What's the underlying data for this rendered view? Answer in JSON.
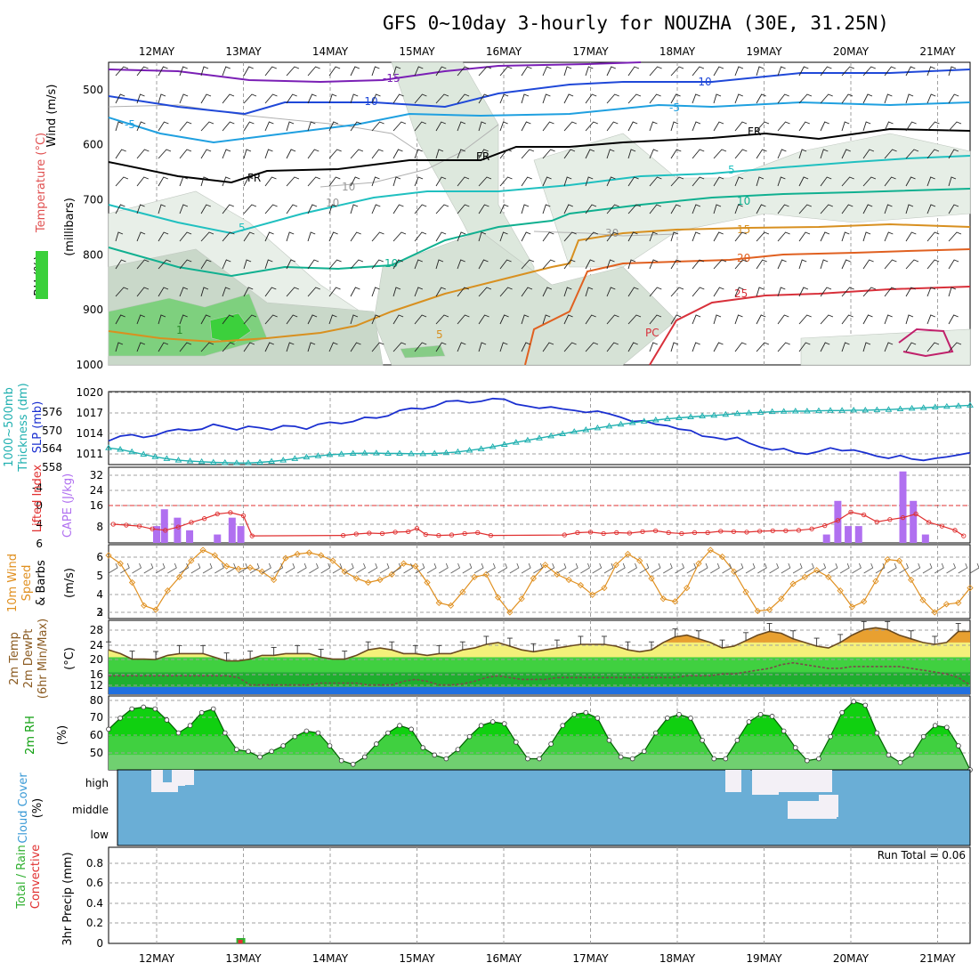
{
  "title": "GFS 0~10day 3-hourly for NOUZHA (30E, 31.25N)",
  "dates": [
    "12MAY",
    "13MAY",
    "14MAY",
    "15MAY",
    "16MAY",
    "17MAY",
    "18MAY",
    "19MAY",
    "20MAY",
    "21MAY"
  ],
  "colors": {
    "grid": "#a0a0a0",
    "slp": "#1a2fd0",
    "thick": "#20b0b0",
    "lifted": "#e03030",
    "cape": "#b070f0",
    "wind10": "#e09020",
    "temp_fill_warm": "#f4f07a",
    "temp_fill_hot": "#e8a030",
    "rh_fill": "#10d010",
    "cloud": "#6aaed6",
    "rain": "#30b030",
    "conv": "#e03030"
  },
  "chart_data": [
    {
      "type": "heatmap",
      "panel": "upper-air",
      "ylabel": "(millibars)",
      "side_labels": [
        "Wind (m/s)",
        "Temperature (°C)",
        "RH (%)"
      ],
      "yticks": [
        500,
        600,
        700,
        800,
        900,
        1000
      ],
      "ylim": [
        1000,
        450
      ],
      "isotherm_labels": [
        "-15",
        "-10",
        "-10",
        "-5",
        "-5",
        "FR",
        "FR",
        "FR",
        "5",
        "5",
        "10",
        "10",
        "15",
        "20",
        "25",
        "30",
        "10",
        "10",
        "1",
        "5",
        "PC"
      ]
    },
    {
      "type": "line",
      "panel": "slp-thickness",
      "side_labels": [
        "1000~500mb",
        "Thickness (dm)",
        "SLP (mb)"
      ],
      "slp_ticks": [
        "1020",
        "1017",
        "1014",
        "1011"
      ],
      "thick_ticks": [
        "576",
        "570",
        "564",
        "558"
      ],
      "ylim": [
        1009.5,
        1020
      ],
      "slp": [
        1012.9,
        1013.6,
        1013.8,
        1013.4,
        1013.7,
        1014.3,
        1014.6,
        1014.4,
        1014.6,
        1015.3,
        1014.9,
        1014.5,
        1015.0,
        1014.8,
        1014.5,
        1015.1,
        1015.0,
        1014.6,
        1015.3,
        1015.6,
        1015.4,
        1015.7,
        1016.3,
        1016.2,
        1016.5,
        1017.3,
        1017.6,
        1017.5,
        1017.9,
        1018.6,
        1018.7,
        1018.4,
        1018.6,
        1019.0,
        1018.9,
        1018.2,
        1017.9,
        1017.6,
        1017.8,
        1017.5,
        1017.3,
        1017.0,
        1017.2,
        1016.8,
        1016.3,
        1015.7,
        1015.8,
        1015.3,
        1015.1,
        1014.6,
        1014.4,
        1013.6,
        1013.4,
        1013.1,
        1013.4,
        1012.6,
        1012.0,
        1011.6,
        1011.8,
        1011.2,
        1011.0,
        1011.4,
        1011.9,
        1011.5,
        1011.6,
        1011.2,
        1010.7,
        1010.4,
        1010.8,
        1010.3,
        1010.1,
        1010.4,
        1010.6,
        1010.9,
        1011.2
      ],
      "thickness": [
        564.3,
        563.8,
        563.0,
        562.2,
        561.4,
        560.8,
        560.3,
        560.0,
        559.8,
        559.6,
        559.5,
        559.4,
        559.4,
        559.6,
        559.9,
        560.3,
        560.8,
        561.3,
        561.7,
        562.1,
        562.3,
        562.5,
        562.6,
        562.6,
        562.5,
        562.5,
        562.4,
        562.4,
        562.5,
        562.7,
        563.0,
        563.5,
        564.0,
        564.7,
        565.4,
        566.1,
        566.8,
        567.5,
        568.2,
        568.9,
        569.6,
        570.2,
        570.8,
        571.4,
        572.0,
        572.5,
        573.0,
        573.4,
        573.8,
        574.1,
        574.4,
        574.7,
        574.9,
        575.2,
        575.5,
        575.7,
        575.9,
        576.1,
        576.2,
        576.3,
        576.3,
        576.4,
        576.5,
        576.5,
        576.6,
        576.6,
        576.7,
        576.8,
        577.0,
        577.2,
        577.4,
        577.6,
        577.8,
        578.0,
        578.2
      ]
    },
    {
      "type": "bar",
      "panel": "cape-li",
      "side_labels": [
        "CAPE (J/kg)",
        "Lifted Index"
      ],
      "cape_ticks": [
        "32",
        "24",
        "16",
        "8"
      ],
      "li_ticks": [
        "-4",
        "0",
        "4",
        "6"
      ],
      "cape_bars": [
        {
          "x": 0.0,
          "v": 8
        },
        {
          "x": 0.09,
          "v": 16
        },
        {
          "x": 0.24,
          "v": 12
        },
        {
          "x": 0.38,
          "v": 6
        },
        {
          "x": 0.7,
          "v": 4
        },
        {
          "x": 0.87,
          "v": 12
        },
        {
          "x": 0.97,
          "v": 8
        },
        {
          "x": 7.72,
          "v": 4
        },
        {
          "x": 7.85,
          "v": 20
        },
        {
          "x": 7.97,
          "v": 8
        },
        {
          "x": 8.09,
          "v": 8
        },
        {
          "x": 8.6,
          "v": 34
        },
        {
          "x": 8.72,
          "v": 20
        },
        {
          "x": 8.86,
          "v": 4
        }
      ],
      "lifted_index": [
        [
          -0.5,
          4
        ],
        [
          -0.35,
          4.2
        ],
        [
          -0.2,
          4.4
        ],
        [
          -0.05,
          5
        ],
        [
          0.1,
          5.3
        ],
        [
          0.25,
          4.6
        ],
        [
          0.4,
          3.6
        ],
        [
          0.55,
          2.8
        ],
        [
          0.7,
          1.8
        ],
        [
          0.85,
          1.5
        ],
        [
          1.0,
          2.2
        ],
        [
          1.1,
          6.5
        ],
        [
          2.15,
          6.4
        ],
        [
          2.3,
          6.1
        ],
        [
          2.45,
          5.9
        ],
        [
          2.6,
          6.0
        ],
        [
          2.75,
          5.7
        ],
        [
          2.9,
          5.6
        ],
        [
          3.0,
          4.9
        ],
        [
          3.1,
          6.2
        ],
        [
          3.25,
          6.4
        ],
        [
          3.4,
          6.3
        ],
        [
          3.55,
          6.0
        ],
        [
          3.7,
          5.8
        ],
        [
          3.85,
          6.4
        ],
        [
          4.7,
          6.3
        ],
        [
          4.85,
          5.8
        ],
        [
          5.0,
          5.7
        ],
        [
          5.15,
          6.0
        ],
        [
          5.3,
          5.8
        ],
        [
          5.45,
          5.9
        ],
        [
          5.6,
          5.6
        ],
        [
          5.75,
          5.4
        ],
        [
          5.9,
          5.8
        ],
        [
          6.05,
          6.0
        ],
        [
          6.2,
          5.8
        ],
        [
          6.35,
          5.8
        ],
        [
          6.5,
          5.5
        ],
        [
          6.65,
          5.6
        ],
        [
          6.8,
          5.7
        ],
        [
          6.95,
          5.5
        ],
        [
          7.1,
          5.4
        ],
        [
          7.25,
          5.4
        ],
        [
          7.4,
          5.3
        ],
        [
          7.55,
          5.0
        ],
        [
          7.7,
          4.3
        ],
        [
          7.85,
          3.2
        ],
        [
          8.0,
          1.4
        ],
        [
          8.15,
          2.0
        ],
        [
          8.3,
          3.5
        ],
        [
          8.45,
          3.0
        ],
        [
          8.6,
          2.6
        ],
        [
          8.75,
          1.8
        ],
        [
          8.9,
          3.6
        ],
        [
          9.05,
          4.4
        ],
        [
          9.2,
          5.3
        ],
        [
          9.3,
          6.5
        ]
      ]
    },
    {
      "type": "line",
      "panel": "wind10m",
      "side_labels": [
        "10m Wind",
        "Speed",
        "& Barbs",
        "(m/s)"
      ],
      "yticks": [
        "6",
        "5",
        "4",
        "3",
        "2"
      ],
      "speed": [
        6.2,
        5.6,
        4.2,
        2.5,
        2.2,
        3.6,
        4.6,
        5.8,
        6.6,
        6.2,
        5.4,
        5.2,
        5.3,
        5.0,
        4.4,
        6.0,
        6.3,
        6.4,
        6.2,
        5.8,
        5.0,
        4.5,
        4.2,
        4.4,
        4.8,
        5.6,
        5.4,
        4.2,
        2.7,
        2.5,
        3.5,
        4.6,
        4.8,
        3.1,
        2.0,
        3.0,
        4.5,
        5.5,
        4.8,
        4.4,
        4.0,
        3.3,
        3.8,
        5.5,
        6.3,
        5.8,
        4.5,
        3.0,
        2.8,
        3.8,
        5.6,
        6.6,
        6.1,
        5.0,
        3.5,
        2.1,
        2.2,
        3.0,
        4.1,
        4.6,
        5.1,
        4.6,
        3.6,
        2.4,
        2.8,
        4.3,
        5.9,
        5.8,
        4.4,
        2.9,
        2.0,
        2.6,
        2.7,
        3.8
      ]
    },
    {
      "type": "area",
      "panel": "temp-dewpoint",
      "side_labels": [
        "2m Temp",
        "2m DewPt",
        "(6hr Min/Max)",
        "(°C)"
      ],
      "yticks": [
        "28",
        "24",
        "20",
        "16",
        "12"
      ],
      "temp": [
        22,
        21,
        19.5,
        19.5,
        19.4,
        20.5,
        21,
        21,
        21,
        20,
        19,
        19,
        19.5,
        20.5,
        20.5,
        21,
        21,
        21,
        20,
        19.5,
        19.5,
        20.5,
        22,
        22.5,
        22,
        21,
        21,
        20.5,
        21,
        21,
        22,
        22.5,
        23.5,
        24,
        23,
        22,
        21.5,
        22,
        22.5,
        23,
        23.5,
        23.5,
        23.5,
        23,
        22,
        21.5,
        22,
        24,
        25.5,
        26,
        25,
        24,
        22.5,
        23,
        24.5,
        26,
        27,
        26.5,
        25,
        24,
        23,
        22.5,
        24,
        26,
        27.5,
        28,
        27.5,
        26,
        25,
        24,
        23.5,
        24,
        27,
        27
      ],
      "dewpoint": [
        15,
        15,
        15,
        15,
        15,
        15,
        15,
        15,
        15,
        15,
        15,
        14.5,
        12.5,
        12.5,
        12.5,
        12.5,
        12.5,
        12.5,
        13,
        13,
        13,
        13,
        12.5,
        12.5,
        12.5,
        13.5,
        14,
        13.5,
        12.5,
        12.5,
        12.8,
        13.5,
        14.5,
        15,
        14.5,
        14,
        14,
        14,
        14.5,
        14.5,
        14.5,
        14.5,
        14.5,
        14.5,
        14.5,
        14.5,
        14.5,
        14.5,
        14.5,
        15,
        15,
        15,
        15.5,
        15.5,
        16,
        16.5,
        17,
        18,
        18.5,
        18,
        17.5,
        17,
        17,
        17.5,
        17.5,
        17.5,
        17.5,
        17.5,
        17,
        16.5,
        16,
        15.5,
        14.5,
        12.5
      ]
    },
    {
      "type": "area",
      "panel": "rh2m",
      "side_labels": [
        "2m RH",
        "(%)"
      ],
      "yticks": [
        "80",
        "70",
        "60",
        "50"
      ],
      "rh": [
        64,
        70,
        75,
        76,
        75,
        69,
        62,
        66,
        73,
        75,
        62,
        53,
        52,
        49,
        52,
        55,
        60,
        63,
        62,
        55,
        47,
        45,
        49,
        56,
        62,
        66,
        64,
        54,
        50,
        48,
        53,
        60,
        66,
        68,
        67,
        57,
        48,
        48,
        56,
        66,
        72,
        73,
        70,
        58,
        49,
        48,
        52,
        62,
        70,
        72,
        70,
        58,
        48,
        48,
        58,
        68,
        72,
        71,
        63,
        54,
        47,
        48,
        60,
        73,
        79,
        77,
        62,
        50,
        46,
        50,
        60,
        66,
        65,
        55,
        42
      ]
    },
    {
      "type": "heatmap",
      "panel": "cloud-cover",
      "side_labels": [
        "Cloud Cover",
        "(%)"
      ],
      "levels": [
        "high",
        "middle",
        "low"
      ]
    },
    {
      "type": "bar",
      "panel": "precip",
      "side_labels": [
        "Total / Rain",
        "Convective",
        "3hr Precip (mm)"
      ],
      "yticks": [
        "0.8",
        "0.6",
        "0.4",
        "0.2",
        "0"
      ],
      "run_total_label": "Run Total = 0.06",
      "bars": [
        {
          "x": 0.97,
          "total": 0.06,
          "conv": 0.04
        }
      ]
    }
  ]
}
